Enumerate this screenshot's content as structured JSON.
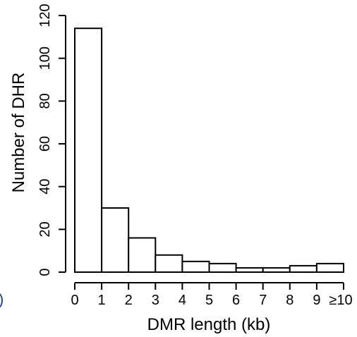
{
  "chart_data": {
    "type": "bar",
    "categories": [
      "0",
      "1",
      "2",
      "3",
      "4",
      "5",
      "6",
      "7",
      "8",
      "9",
      "≥10"
    ],
    "bins": [
      {
        "from": 0,
        "to": 1,
        "value": 114
      },
      {
        "from": 1,
        "to": 2,
        "value": 30
      },
      {
        "from": 2,
        "to": 3,
        "value": 16
      },
      {
        "from": 3,
        "to": 4,
        "value": 8
      },
      {
        "from": 4,
        "to": 5,
        "value": 5
      },
      {
        "from": 5,
        "to": 6,
        "value": 4
      },
      {
        "from": 6,
        "to": 7,
        "value": 2
      },
      {
        "from": 7,
        "to": 8,
        "value": 2
      },
      {
        "from": 8,
        "to": 9,
        "value": 3
      },
      {
        "from": 9,
        "to": 10,
        "value": 4
      }
    ],
    "xlabel": "DMR length (kb)",
    "ylabel": "Number of DHR",
    "xlim": [
      0,
      10
    ],
    "ylim": [
      0,
      120
    ],
    "yticks": [
      0,
      20,
      40,
      60,
      80,
      100,
      120
    ],
    "grid": false,
    "legend": "none"
  },
  "edge_mark": ")"
}
